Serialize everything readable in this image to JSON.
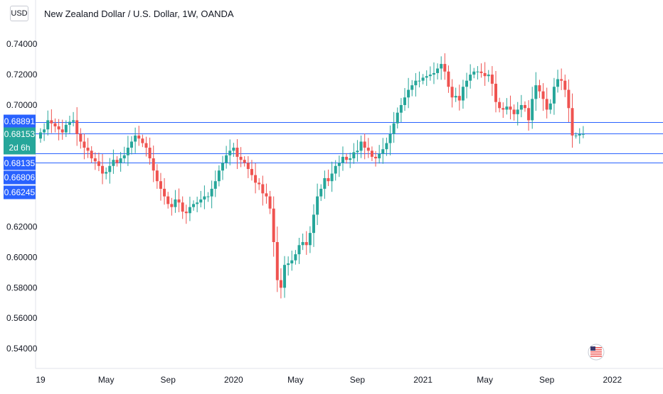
{
  "header": {
    "title": "New Zealand Dollar / U.S. Dollar, 1W, OANDA",
    "currency_button": "USD"
  },
  "countdown": "2d 6h",
  "colors": {
    "up": "#26a69a",
    "down": "#ef5350",
    "line": "#2962ff",
    "label_bg": "#2962ff",
    "last_price_bg": "#26a69a",
    "text": "#131722",
    "axis_border": "#e0e3eb"
  },
  "chart_data": {
    "type": "candlestick",
    "title": "New Zealand Dollar / U.S. Dollar, 1W, OANDA",
    "interval": "1W",
    "source": "OANDA",
    "ylim": [
      0.527,
      0.769
    ],
    "y_ticks": [
      "0.54000",
      "0.56000",
      "0.58000",
      "0.60000",
      "0.62000",
      "0.70000",
      "0.72000",
      "0.74000"
    ],
    "x_ticks": [
      "19",
      "May",
      "Sep",
      "2020",
      "May",
      "Sep",
      "2021",
      "May",
      "Sep",
      "2022"
    ],
    "x_tick_weeks": [
      0,
      18,
      35,
      53,
      70,
      87,
      105,
      122,
      139,
      157
    ],
    "horizontal_lines": [
      0.68891,
      0.68153,
      0.66806,
      0.66245
    ],
    "price_labels": [
      "0.68891",
      "0.68153",
      "0.68135",
      "0.66806",
      "0.66245"
    ],
    "last_price": "0.68135",
    "last_week_labels": [
      0.68153
    ],
    "closes": [
      0.682,
      0.684,
      0.69,
      0.688,
      0.686,
      0.684,
      0.682,
      0.687,
      0.689,
      0.69,
      0.681,
      0.676,
      0.672,
      0.67,
      0.665,
      0.663,
      0.66,
      0.655,
      0.656,
      0.66,
      0.664,
      0.662,
      0.665,
      0.667,
      0.672,
      0.676,
      0.68,
      0.678,
      0.675,
      0.672,
      0.665,
      0.657,
      0.65,
      0.645,
      0.64,
      0.635,
      0.633,
      0.638,
      0.636,
      0.63,
      0.629,
      0.633,
      0.635,
      0.636,
      0.638,
      0.64,
      0.64,
      0.645,
      0.65,
      0.657,
      0.662,
      0.667,
      0.67,
      0.672,
      0.666,
      0.664,
      0.662,
      0.658,
      0.654,
      0.649,
      0.648,
      0.642,
      0.64,
      0.632,
      0.61,
      0.585,
      0.58,
      0.595,
      0.596,
      0.598,
      0.602,
      0.608,
      0.61,
      0.608,
      0.616,
      0.628,
      0.64,
      0.645,
      0.652,
      0.65,
      0.655,
      0.66,
      0.662,
      0.666,
      0.664,
      0.665,
      0.669,
      0.67,
      0.676,
      0.672,
      0.67,
      0.666,
      0.665,
      0.668,
      0.671,
      0.675,
      0.681,
      0.688,
      0.695,
      0.7,
      0.705,
      0.71,
      0.713,
      0.716,
      0.716,
      0.718,
      0.719,
      0.72,
      0.721,
      0.724,
      0.727,
      0.722,
      0.712,
      0.705,
      0.706,
      0.703,
      0.712,
      0.716,
      0.72,
      0.722,
      0.722,
      0.721,
      0.719,
      0.72,
      0.714,
      0.702,
      0.698,
      0.697,
      0.699,
      0.697,
      0.694,
      0.697,
      0.7,
      0.698,
      0.69,
      0.704,
      0.713,
      0.709,
      0.704,
      0.697,
      0.701,
      0.712,
      0.717,
      0.716,
      0.71,
      0.698,
      0.68,
      0.68,
      0.681,
      0.681
    ]
  }
}
